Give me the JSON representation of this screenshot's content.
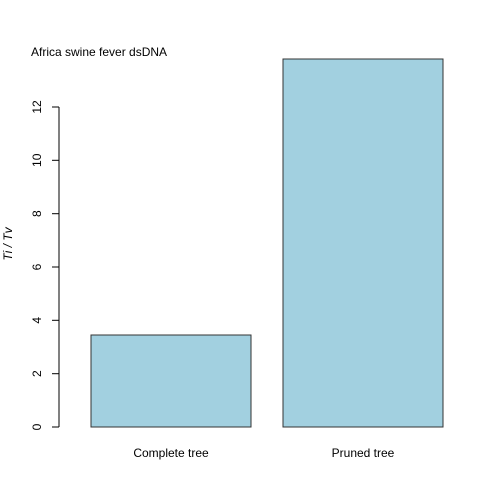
{
  "chart_data": {
    "type": "bar",
    "title": "Africa swine fever dsDNA",
    "categories": [
      "Complete tree",
      "Pruned tree"
    ],
    "values": [
      3.45,
      13.8
    ],
    "xlabel": "",
    "ylabel": "Ti / Tv",
    "ylim": [
      0,
      13.8
    ],
    "yticks": [
      0,
      2,
      4,
      6,
      8,
      10,
      12
    ],
    "bar_color": "#a2d0e0",
    "bar_border_color": "#333333",
    "grid": false,
    "legend": "none"
  }
}
